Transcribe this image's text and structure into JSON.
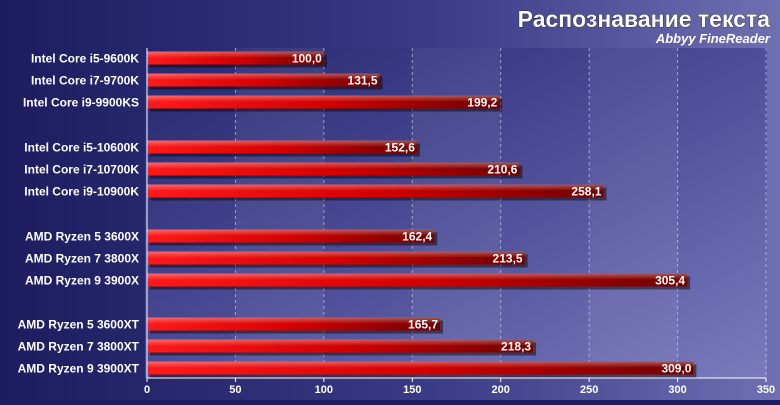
{
  "chart_data": {
    "type": "bar",
    "orientation": "horizontal",
    "title": "Распознавание текста",
    "subtitle": "Abbyy FineReader",
    "xlabel": "",
    "ylabel": "",
    "xlim": [
      0,
      350
    ],
    "xticks": [
      0,
      50,
      100,
      150,
      200,
      250,
      300,
      350
    ],
    "grid": true,
    "legend": "none",
    "groups": [
      {
        "categories": [
          "Intel Core i5-9600K",
          "Intel Core i7-9700K",
          "Intel Core i9-9900KS"
        ],
        "values": [
          100.0,
          131.5,
          199.2
        ],
        "labels": [
          "100,0",
          "131,5",
          "199,2"
        ]
      },
      {
        "categories": [
          "Intel Core i5-10600K",
          "Intel Core i7-10700K",
          "Intel Core i9-10900K"
        ],
        "values": [
          152.6,
          210.6,
          258.1
        ],
        "labels": [
          "152,6",
          "210,6",
          "258,1"
        ]
      },
      {
        "categories": [
          "AMD Ryzen 5 3600X",
          "AMD Ryzen 7 3800X",
          "AMD Ryzen 9 3900X"
        ],
        "values": [
          162.4,
          213.5,
          305.4
        ],
        "labels": [
          "162,4",
          "213,5",
          "305,4"
        ]
      },
      {
        "categories": [
          "AMD Ryzen 5 3600XT",
          "AMD Ryzen 7 3800XT",
          "AMD Ryzen 9 3900XT"
        ],
        "values": [
          165.7,
          218.3,
          309.0
        ],
        "labels": [
          "165,7",
          "218,3",
          "309,0"
        ]
      }
    ],
    "colors": {
      "background": "#1d1d63",
      "bar_light": "#ff1a1a",
      "bar_dark": "#6e0000",
      "text": "#ffffff"
    }
  }
}
